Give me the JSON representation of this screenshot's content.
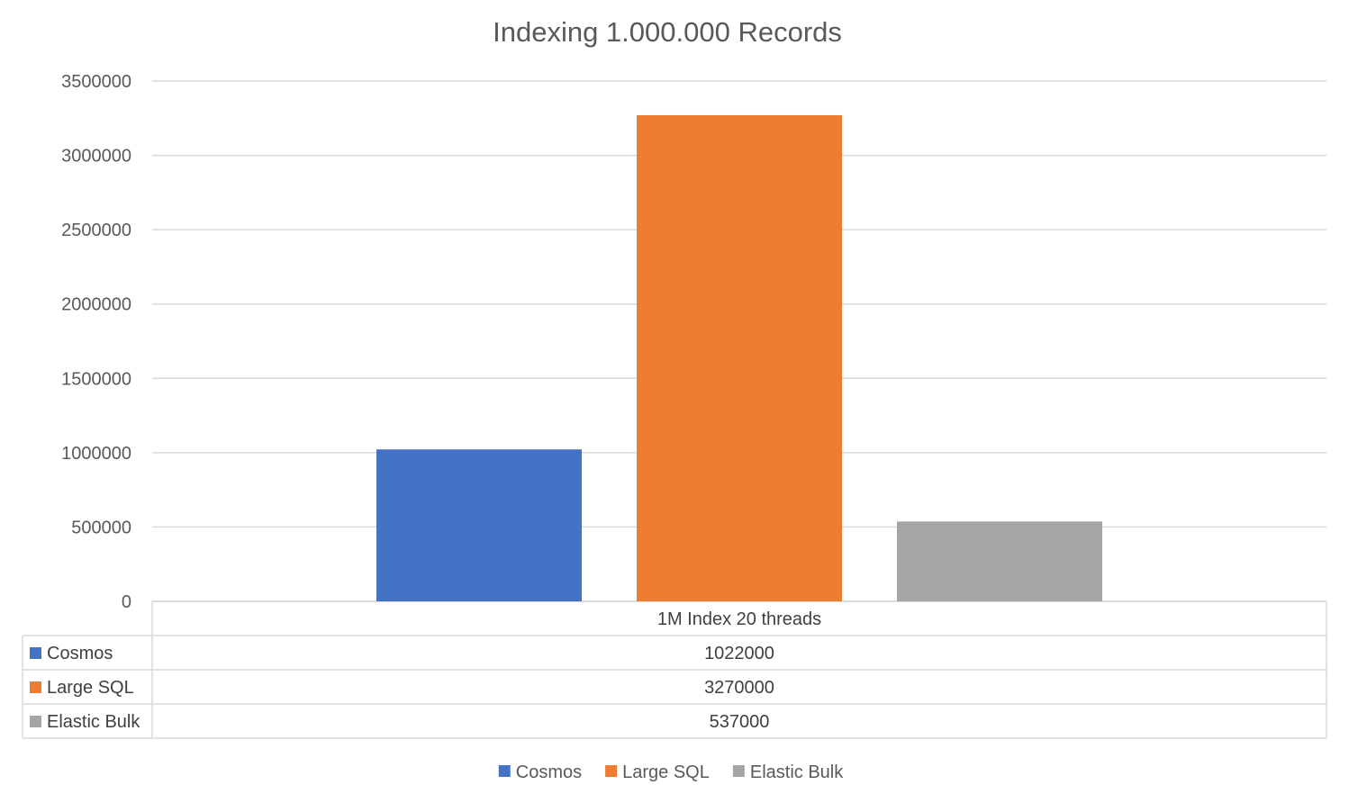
{
  "chart_data": {
    "type": "bar",
    "title": "Indexing 1.000.000 Records",
    "categories": [
      "1M Index 20 threads"
    ],
    "series": [
      {
        "name": "Cosmos",
        "values": [
          1022000
        ],
        "color": "#4472C4"
      },
      {
        "name": "Large SQL",
        "values": [
          3270000
        ],
        "color": "#ED7D31"
      },
      {
        "name": "Elastic Bulk",
        "values": [
          537000
        ],
        "color": "#A5A5A5"
      }
    ],
    "ylim": [
      0,
      3500000
    ],
    "yticks": [
      0,
      500000,
      1000000,
      1500000,
      2000000,
      2500000,
      3000000,
      3500000
    ],
    "ytick_labels": [
      "0",
      "500000",
      "1000000",
      "1500000",
      "2000000",
      "2500000",
      "3000000",
      "3500000"
    ],
    "grid": true,
    "data_table": true,
    "legend_position": "bottom"
  }
}
